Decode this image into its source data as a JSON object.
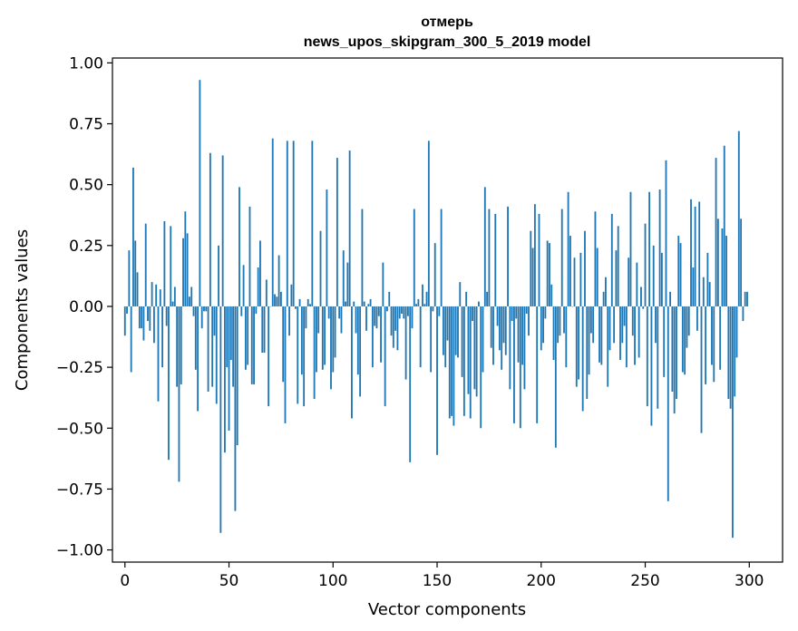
{
  "chart_data": {
    "type": "bar",
    "title": [
      "отмерь",
      "news_upos_skipgram_300_5_2019 model"
    ],
    "xlabel": "Vector components",
    "ylabel": "Components values",
    "xlim": [
      -6,
      316
    ],
    "ylim": [
      -1.05,
      1.02
    ],
    "xticks": [
      0,
      50,
      100,
      150,
      200,
      250,
      300
    ],
    "xtick_labels": [
      "0",
      "50",
      "100",
      "150",
      "200",
      "250",
      "300"
    ],
    "yticks": [
      1.0,
      0.75,
      0.5,
      0.25,
      0.0,
      -0.25,
      -0.5,
      -0.75,
      -1.0
    ],
    "ytick_labels": [
      "1.00",
      "0.75",
      "0.50",
      "0.25",
      "0.00",
      "−0.25",
      "−0.50",
      "−0.75",
      "−1.00"
    ],
    "bar_color": "#1f77b4",
    "values": [
      -0.12,
      -0.03,
      0.23,
      -0.27,
      0.57,
      0.27,
      0.14,
      -0.09,
      -0.09,
      -0.14,
      0.34,
      -0.06,
      -0.1,
      0.1,
      -0.15,
      0.09,
      -0.39,
      0.07,
      -0.25,
      0.35,
      -0.08,
      -0.63,
      0.33,
      0.02,
      0.08,
      -0.33,
      -0.72,
      -0.32,
      0.28,
      0.39,
      0.3,
      0.04,
      0.08,
      -0.04,
      -0.26,
      -0.43,
      0.93,
      -0.09,
      -0.02,
      -0.02,
      -0.35,
      0.63,
      -0.33,
      -0.12,
      -0.4,
      0.25,
      -0.93,
      0.62,
      -0.6,
      -0.25,
      -0.51,
      -0.22,
      -0.33,
      -0.84,
      -0.57,
      0.49,
      -0.04,
      0.17,
      -0.26,
      -0.24,
      0.41,
      -0.32,
      -0.32,
      -0.03,
      0.16,
      0.27,
      -0.19,
      -0.19,
      0.11,
      -0.41,
      0.0,
      0.69,
      0.05,
      0.04,
      0.21,
      0.06,
      -0.31,
      -0.48,
      0.68,
      -0.12,
      0.09,
      0.68,
      -0.01,
      -0.4,
      0.03,
      -0.28,
      -0.41,
      -0.09,
      0.03,
      0.01,
      0.68,
      -0.38,
      -0.27,
      -0.11,
      0.31,
      -0.26,
      -0.24,
      0.48,
      -0.05,
      -0.34,
      -0.27,
      -0.21,
      0.61,
      -0.05,
      -0.11,
      0.23,
      0.02,
      0.18,
      0.64,
      -0.46,
      0.02,
      -0.11,
      -0.28,
      -0.37,
      0.4,
      0.02,
      -0.1,
      0.01,
      0.03,
      -0.25,
      -0.08,
      -0.09,
      -0.04,
      -0.23,
      0.18,
      -0.41,
      -0.02,
      0.06,
      -0.12,
      -0.17,
      -0.1,
      -0.18,
      -0.05,
      -0.03,
      -0.05,
      -0.3,
      -0.04,
      -0.64,
      -0.09,
      0.4,
      0.01,
      0.03,
      -0.25,
      0.09,
      0.01,
      0.06,
      0.68,
      -0.27,
      -0.02,
      0.26,
      -0.61,
      -0.04,
      0.4,
      -0.2,
      -0.25,
      -0.14,
      -0.46,
      -0.45,
      -0.49,
      -0.2,
      -0.21,
      0.1,
      -0.29,
      -0.45,
      0.06,
      -0.36,
      -0.46,
      -0.06,
      -0.34,
      -0.37,
      0.02,
      -0.5,
      -0.27,
      0.49,
      0.06,
      0.4,
      -0.17,
      -0.24,
      0.38,
      -0.08,
      -0.18,
      -0.26,
      -0.15,
      -0.2,
      0.41,
      -0.34,
      -0.06,
      -0.48,
      -0.05,
      -0.23,
      -0.5,
      -0.24,
      -0.34,
      -0.03,
      -0.12,
      0.31,
      0.24,
      0.42,
      -0.48,
      0.38,
      -0.18,
      -0.15,
      -0.05,
      0.27,
      0.26,
      0.09,
      -0.22,
      -0.58,
      -0.15,
      -0.12,
      0.4,
      -0.11,
      -0.25,
      0.47,
      0.29,
      0.0,
      0.2,
      -0.33,
      -0.3,
      0.22,
      -0.43,
      0.31,
      -0.38,
      -0.28,
      -0.11,
      -0.15,
      0.39,
      0.24,
      -0.23,
      -0.24,
      0.06,
      0.12,
      -0.33,
      -0.18,
      0.38,
      -0.15,
      0.23,
      0.33,
      -0.22,
      -0.15,
      -0.08,
      -0.25,
      0.2,
      0.47,
      -0.12,
      -0.24,
      0.18,
      -0.21,
      0.08,
      -0.01,
      0.34,
      -0.41,
      0.47,
      -0.49,
      0.25,
      -0.15,
      -0.42,
      0.48,
      0.22,
      -0.29,
      0.6,
      -0.8,
      0.06,
      -0.35,
      -0.44,
      -0.38,
      0.29,
      0.26,
      -0.27,
      -0.28,
      -0.17,
      -0.12,
      0.44,
      0.16,
      0.41,
      -0.1,
      0.43,
      -0.52,
      0.12,
      -0.32,
      0.22,
      0.1,
      -0.24,
      -0.31,
      0.61,
      0.36,
      -0.26,
      0.32,
      0.66,
      0.29,
      -0.38,
      -0.42,
      -0.95,
      -0.37,
      -0.21,
      0.72,
      0.36,
      -0.06,
      0.06,
      0.06
    ]
  }
}
